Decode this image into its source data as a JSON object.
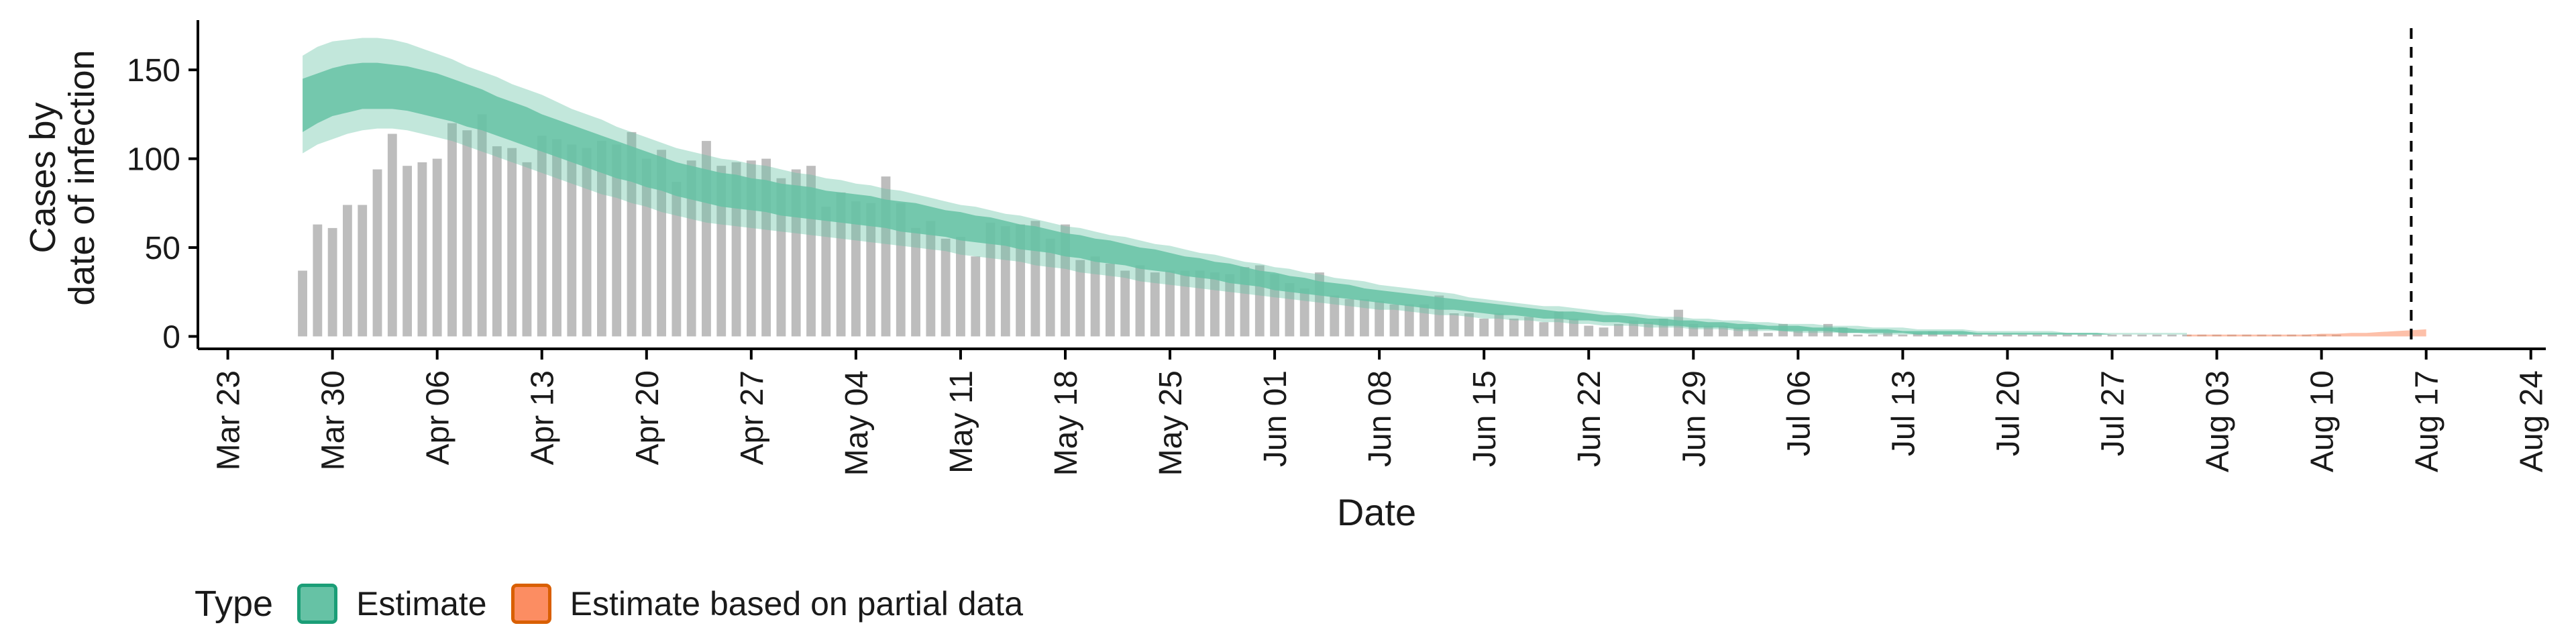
{
  "chart_data": {
    "type": "bar",
    "ylabel_lines": [
      "Cases by",
      "date of infection"
    ],
    "xlabel": "Date",
    "ylim": [
      -7,
      178
    ],
    "xlim": [
      "2020-03-21",
      "2020-08-25"
    ],
    "y_ticks": [
      0,
      50,
      100,
      150
    ],
    "x_ticks": [
      {
        "date": "2020-03-23",
        "label": "Mar 23"
      },
      {
        "date": "2020-03-30",
        "label": "Mar 30"
      },
      {
        "date": "2020-04-06",
        "label": "Apr 06"
      },
      {
        "date": "2020-04-13",
        "label": "Apr 13"
      },
      {
        "date": "2020-04-20",
        "label": "Apr 20"
      },
      {
        "date": "2020-04-27",
        "label": "Apr 27"
      },
      {
        "date": "2020-05-04",
        "label": "May 04"
      },
      {
        "date": "2020-05-11",
        "label": "May 11"
      },
      {
        "date": "2020-05-18",
        "label": "May 18"
      },
      {
        "date": "2020-05-25",
        "label": "May 25"
      },
      {
        "date": "2020-06-01",
        "label": "Jun 01"
      },
      {
        "date": "2020-06-08",
        "label": "Jun 08"
      },
      {
        "date": "2020-06-15",
        "label": "Jun 15"
      },
      {
        "date": "2020-06-22",
        "label": "Jun 22"
      },
      {
        "date": "2020-06-29",
        "label": "Jun 29"
      },
      {
        "date": "2020-07-06",
        "label": "Jul 06"
      },
      {
        "date": "2020-07-13",
        "label": "Jul 13"
      },
      {
        "date": "2020-07-20",
        "label": "Jul 20"
      },
      {
        "date": "2020-07-27",
        "label": "Jul 27"
      },
      {
        "date": "2020-08-03",
        "label": "Aug 03"
      },
      {
        "date": "2020-08-10",
        "label": "Aug 10"
      },
      {
        "date": "2020-08-17",
        "label": "Aug 17"
      },
      {
        "date": "2020-08-24",
        "label": "Aug 24"
      }
    ],
    "bars": {
      "start_date": "2020-03-28",
      "color": "#bdbdbd",
      "values": [
        37,
        63,
        61,
        74,
        74,
        94,
        114,
        96,
        98,
        100,
        120,
        116,
        125,
        107,
        106,
        98,
        113,
        111,
        108,
        106,
        110,
        108,
        115,
        100,
        105,
        87,
        99,
        110,
        96,
        98,
        99,
        100,
        89,
        94,
        96,
        73,
        81,
        76,
        75,
        90,
        75,
        61,
        65,
        55,
        56,
        45,
        64,
        62,
        63,
        65,
        55,
        63,
        43,
        45,
        41,
        37,
        40,
        36,
        37,
        37,
        37,
        36,
        35,
        39,
        40,
        35,
        30,
        27,
        36,
        23,
        21,
        21,
        20,
        18,
        18,
        18,
        23,
        13,
        13,
        10,
        13,
        10,
        11,
        8,
        14,
        10,
        6,
        5,
        7,
        9,
        8,
        10,
        15,
        7,
        6,
        6,
        5,
        5,
        2,
        7,
        3,
        3,
        7,
        5,
        1,
        1,
        2,
        1,
        2,
        3,
        1,
        1,
        1,
        1,
        1,
        1,
        1,
        1,
        1,
        1,
        1,
        1,
        1,
        1,
        1,
        1,
        1,
        1,
        1,
        1,
        1,
        1,
        1,
        1,
        1,
        1,
        1
      ]
    },
    "series": [
      {
        "name": "Estimate",
        "color": "#1b9e77",
        "fill": "#66c2a5",
        "start_date": "2020-03-28",
        "median": [
          129,
          133,
          136,
          139,
          140,
          140,
          139,
          138,
          136,
          134,
          132,
          129,
          127,
          124,
          121,
          118,
          115,
          112,
          109,
          106,
          103,
          100,
          97,
          94,
          92,
          89,
          87,
          85,
          83,
          82,
          80,
          79,
          77,
          76,
          75,
          74,
          73,
          72,
          70,
          69,
          68,
          67,
          65,
          64,
          62,
          61,
          60,
          58,
          57,
          55,
          54,
          52,
          51,
          49,
          48,
          46,
          45,
          43,
          42,
          40,
          39,
          37,
          36,
          34,
          33,
          31,
          30,
          29,
          27,
          26,
          25,
          24,
          23,
          22,
          21,
          20,
          19,
          18,
          17,
          16,
          15,
          14,
          14,
          13,
          12,
          11,
          11,
          10,
          9,
          9,
          8,
          8,
          7,
          7,
          7,
          6,
          6,
          5,
          5,
          5,
          4,
          4,
          4,
          3,
          3,
          3,
          3,
          2,
          2,
          2,
          2,
          2,
          2,
          2,
          1,
          1,
          1,
          1,
          1,
          1,
          1,
          1,
          1,
          1,
          1,
          1,
          1
        ],
        "inner_lower": [
          115,
          120,
          124,
          126,
          128,
          128,
          128,
          127,
          125,
          123,
          121,
          118,
          116,
          113,
          110,
          107,
          104,
          101,
          98,
          95,
          92,
          89,
          87,
          84,
          82,
          79,
          77,
          75,
          73,
          72,
          71,
          70,
          68,
          67,
          66,
          65,
          64,
          63,
          62,
          61,
          59,
          58,
          57,
          56,
          54,
          53,
          52,
          51,
          49,
          48,
          47,
          45,
          44,
          42,
          41,
          40,
          38,
          37,
          36,
          34,
          33,
          32,
          30,
          29,
          28,
          26,
          25,
          24,
          23,
          22,
          21,
          20,
          19,
          18,
          17,
          16,
          15,
          15,
          14,
          13,
          12,
          12,
          11,
          10,
          10,
          9,
          9,
          8,
          8,
          7,
          7,
          6,
          6,
          5,
          5,
          5,
          4,
          4,
          4,
          3,
          3,
          3,
          3,
          2,
          2,
          2,
          2,
          2,
          1,
          1,
          1,
          1,
          1,
          1,
          1,
          1,
          1,
          1,
          1,
          1,
          1,
          1,
          1,
          1,
          1,
          1,
          1
        ],
        "inner_upper": [
          145,
          148,
          151,
          153,
          154,
          154,
          153,
          152,
          150,
          148,
          145,
          142,
          139,
          135,
          132,
          129,
          125,
          122,
          119,
          116,
          113,
          110,
          107,
          104,
          101,
          98,
          96,
          94,
          92,
          91,
          89,
          88,
          86,
          85,
          84,
          82,
          81,
          80,
          79,
          77,
          76,
          75,
          73,
          71,
          70,
          68,
          67,
          65,
          63,
          62,
          60,
          58,
          57,
          55,
          54,
          52,
          50,
          49,
          47,
          45,
          44,
          42,
          41,
          39,
          37,
          36,
          34,
          33,
          31,
          30,
          29,
          27,
          26,
          25,
          24,
          23,
          22,
          21,
          20,
          19,
          18,
          17,
          16,
          15,
          14,
          14,
          13,
          12,
          12,
          11,
          10,
          10,
          9,
          9,
          8,
          8,
          7,
          7,
          6,
          6,
          6,
          5,
          5,
          5,
          4,
          4,
          4,
          3,
          3,
          3,
          3,
          3,
          2,
          2,
          2,
          2,
          2,
          2,
          2,
          2,
          2,
          1,
          1,
          1,
          1,
          1,
          1
        ],
        "outer_lower": [
          103,
          108,
          111,
          114,
          116,
          117,
          117,
          116,
          114,
          112,
          110,
          107,
          104,
          101,
          98,
          95,
          92,
          89,
          86,
          83,
          80,
          78,
          75,
          73,
          70,
          68,
          66,
          64,
          63,
          62,
          61,
          60,
          59,
          58,
          57,
          56,
          55,
          54,
          53,
          52,
          51,
          50,
          49,
          48,
          46,
          45,
          44,
          43,
          42,
          40,
          39,
          38,
          36,
          35,
          34,
          33,
          31,
          30,
          29,
          28,
          27,
          26,
          25,
          24,
          23,
          22,
          21,
          20,
          19,
          18,
          17,
          16,
          15,
          15,
          14,
          13,
          12,
          12,
          11,
          10,
          10,
          9,
          9,
          8,
          8,
          7,
          7,
          6,
          6,
          6,
          5,
          5,
          5,
          4,
          4,
          4,
          3,
          3,
          3,
          3,
          2,
          2,
          2,
          2,
          2,
          1,
          1,
          1,
          1,
          1,
          1,
          1,
          1,
          1,
          1,
          1,
          1,
          1,
          1,
          1,
          1,
          1,
          1,
          1,
          1,
          1,
          1
        ],
        "outer_upper": [
          158,
          163,
          166,
          167,
          168,
          168,
          167,
          165,
          162,
          159,
          156,
          152,
          149,
          146,
          142,
          139,
          136,
          132,
          128,
          125,
          122,
          118,
          115,
          112,
          109,
          106,
          104,
          102,
          100,
          99,
          97,
          96,
          94,
          92,
          91,
          89,
          88,
          86,
          85,
          83,
          82,
          80,
          78,
          76,
          74,
          73,
          71,
          69,
          68,
          66,
          64,
          62,
          61,
          59,
          57,
          56,
          54,
          52,
          51,
          49,
          47,
          46,
          44,
          42,
          41,
          39,
          38,
          36,
          35,
          33,
          32,
          31,
          29,
          28,
          27,
          26,
          25,
          24,
          22,
          21,
          20,
          19,
          18,
          17,
          17,
          16,
          15,
          14,
          13,
          13,
          12,
          11,
          11,
          10,
          10,
          9,
          9,
          8,
          8,
          7,
          7,
          7,
          6,
          6,
          6,
          5,
          5,
          5,
          4,
          4,
          4,
          4,
          3,
          3,
          3,
          3,
          3,
          3,
          2,
          2,
          2,
          2,
          2,
          2,
          2,
          2,
          2
        ]
      },
      {
        "name": "Estimate based on partial data",
        "color": "#d95f02",
        "fill": "#fc8d62",
        "start_date": "2020-08-01",
        "median": [
          1,
          1,
          1,
          1,
          1,
          1,
          1,
          1,
          1,
          1,
          1,
          1,
          1,
          1,
          1,
          1,
          1
        ],
        "outer_lower": [
          0,
          0,
          0,
          0,
          0,
          0,
          0,
          0,
          0,
          0,
          0,
          0,
          0,
          0,
          0,
          0,
          0
        ],
        "outer_upper": [
          1,
          1,
          1,
          1,
          1,
          1,
          1,
          1,
          1,
          1.5,
          1.5,
          2,
          2,
          2.5,
          3,
          3.5,
          4
        ]
      }
    ],
    "reference_line": {
      "date": "2020-08-16",
      "style": "dashed"
    },
    "legend": {
      "title": "Type",
      "position": "bottom-left"
    }
  }
}
